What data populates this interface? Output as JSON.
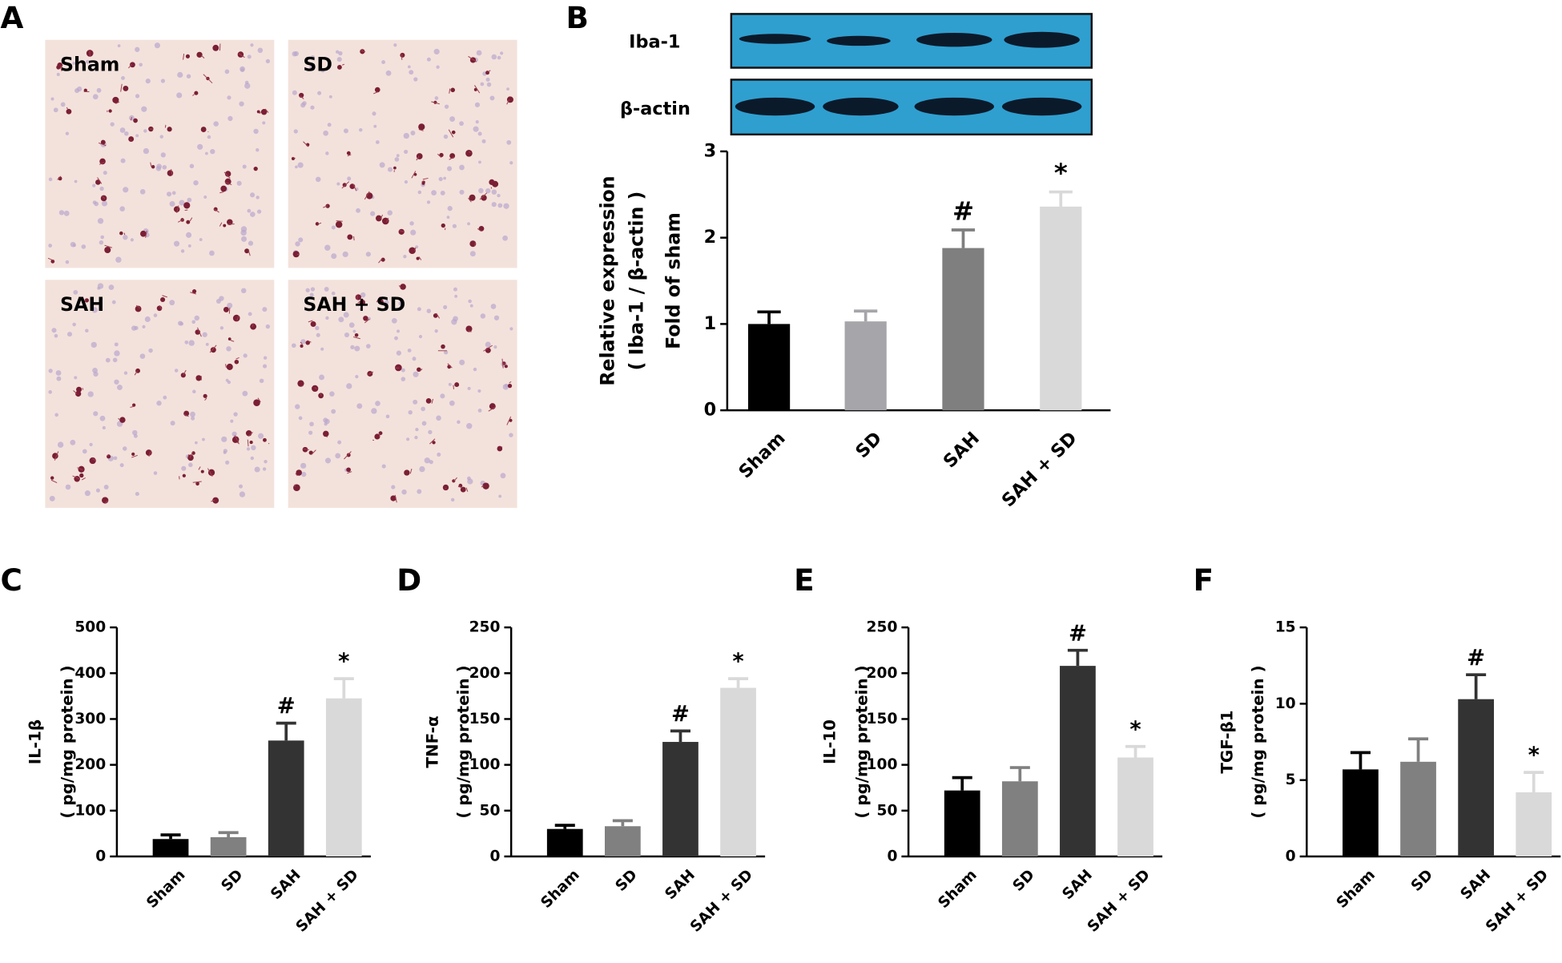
{
  "panel_labels": [
    "A",
    "B",
    "C",
    "D",
    "E",
    "F"
  ],
  "micrographs": [
    "Sham",
    "SD",
    "SAH",
    "SAH + SD"
  ],
  "blot_labels": [
    "Iba-1",
    "β-actin"
  ],
  "chart_data": [
    {
      "type": "bar",
      "ylabel": [
        "Relative expression",
        "( Iba-1 / β-actin )",
        "Fold of sham"
      ],
      "categories": [
        "Sham",
        "SD",
        "SAH",
        "SAH + SD"
      ],
      "values": [
        1.0,
        1.03,
        1.88,
        2.36
      ],
      "errors": [
        0.14,
        0.12,
        0.21,
        0.17
      ],
      "annotations": [
        null,
        null,
        "#",
        "*"
      ],
      "colors": [
        "#000000",
        "#a5a5aa",
        "#7f7f7f",
        "#d9d9d9"
      ],
      "ylim": [
        0,
        3
      ],
      "yticks": [
        0,
        1,
        2,
        3
      ]
    },
    {
      "type": "bar",
      "ylabel": [
        "IL-1β",
        "( pg/mg protein )"
      ],
      "categories": [
        "Sham",
        "SD",
        "SAH",
        "SAH + SD"
      ],
      "values": [
        38,
        42,
        253,
        345
      ],
      "errors": [
        9,
        10,
        38,
        43
      ],
      "annotations": [
        null,
        null,
        "#",
        "*"
      ],
      "colors": [
        "#000000",
        "#808080",
        "#333333",
        "#d9d9d9"
      ],
      "ylim": [
        0,
        500
      ],
      "yticks": [
        0,
        100,
        200,
        300,
        400,
        500
      ]
    },
    {
      "type": "bar",
      "ylabel": [
        "TNF-α",
        "( pg/mg protein )"
      ],
      "categories": [
        "Sham",
        "SD",
        "SAH",
        "SAH + SD"
      ],
      "values": [
        30,
        33,
        125,
        184
      ],
      "errors": [
        4,
        6,
        12,
        10
      ],
      "annotations": [
        null,
        null,
        "#",
        "*"
      ],
      "colors": [
        "#000000",
        "#808080",
        "#333333",
        "#d9d9d9"
      ],
      "ylim": [
        0,
        250
      ],
      "yticks": [
        0,
        50,
        100,
        150,
        200,
        250
      ]
    },
    {
      "type": "bar",
      "ylabel": [
        "IL-10",
        "( pg/mg protein )"
      ],
      "categories": [
        "Sham",
        "SD",
        "SAH",
        "SAH + SD"
      ],
      "values": [
        72,
        82,
        208,
        108
      ],
      "errors": [
        14,
        15,
        17,
        12
      ],
      "annotations": [
        null,
        null,
        "#",
        "*"
      ],
      "colors": [
        "#000000",
        "#808080",
        "#333333",
        "#d9d9d9"
      ],
      "ylim": [
        0,
        250
      ],
      "yticks": [
        0,
        50,
        100,
        150,
        200,
        250
      ]
    },
    {
      "type": "bar",
      "ylabel": [
        "TGF-β1",
        "( pg/mg protein )"
      ],
      "categories": [
        "Sham",
        "SD",
        "SAH",
        "SAH + SD"
      ],
      "values": [
        5.7,
        6.2,
        10.3,
        4.2
      ],
      "errors": [
        1.1,
        1.5,
        1.6,
        1.3
      ],
      "annotations": [
        null,
        null,
        "#",
        "*"
      ],
      "colors": [
        "#000000",
        "#808080",
        "#333333",
        "#d9d9d9"
      ],
      "ylim": [
        0,
        15
      ],
      "yticks": [
        0,
        5,
        10,
        15
      ]
    }
  ]
}
